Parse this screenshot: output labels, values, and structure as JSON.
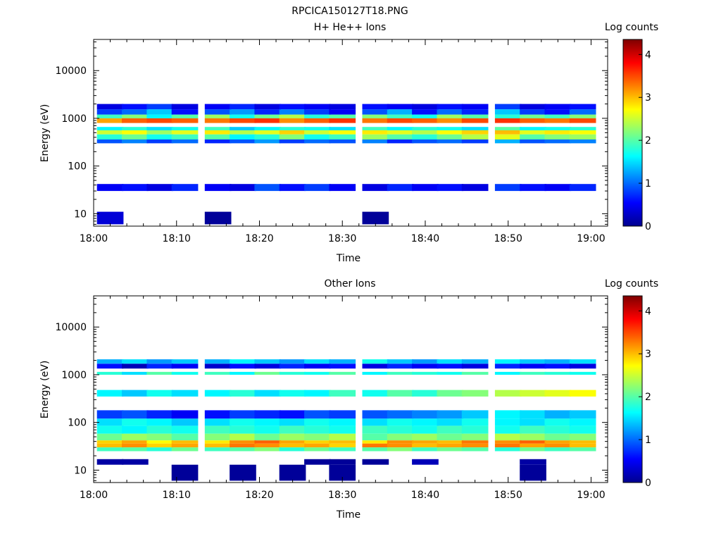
{
  "figure_title": "RPCICA150127T18.PNG",
  "colormap": [
    "#00008f",
    "#0000ff",
    "#007fff",
    "#00ffff",
    "#7fff7f",
    "#ffff00",
    "#ff7f00",
    "#ff0000",
    "#7f0000"
  ],
  "chart_data": [
    {
      "type": "heatmap",
      "title": "H+ He++ Ions",
      "xlabel": "Time",
      "ylabel": "Energy (eV)",
      "x_ticks": [
        "18:00",
        "18:10",
        "18:20",
        "18:30",
        "18:40",
        "18:50",
        "19:00"
      ],
      "y_ticks": [
        "10",
        "100",
        "1000",
        "10000"
      ],
      "y_scale": "log",
      "ylim": [
        5.5,
        45000
      ],
      "xlim": [
        "18:00",
        "19:02"
      ],
      "colorbar_label": "Log counts",
      "colorbar_ticks": [
        "0",
        "1",
        "2",
        "3",
        "4"
      ],
      "zlim": [
        0,
        4.35
      ],
      "time_columns": [
        "18:02",
        "18:05",
        "18:08",
        "18:11",
        "18:15",
        "18:18",
        "18:21",
        "18:24",
        "18:27",
        "18:30",
        "18:34",
        "18:37",
        "18:40",
        "18:43",
        "18:46",
        "18:50",
        "18:53",
        "18:56",
        "18:59"
      ],
      "bands": [
        {
          "e_low": 800,
          "e_high": 1000,
          "values": [
            3.1,
            3.4,
            3.5,
            3.4,
            3.3,
            3.5,
            3.6,
            3.2,
            3.4,
            3.6,
            3.3,
            3.5,
            3.4,
            3.2,
            3.5,
            3.6,
            3.4,
            3.3,
            3.5
          ]
        },
        {
          "e_low": 1000,
          "e_high": 1200,
          "values": [
            1.9,
            2.2,
            1.6,
            2.0,
            2.3,
            1.7,
            2.1,
            2.4,
            1.8,
            2.0,
            2.2,
            1.9,
            1.7,
            2.3,
            2.0,
            1.8,
            2.1,
            1.9,
            2.2
          ]
        },
        {
          "e_low": 1200,
          "e_high": 1550,
          "values": [
            0.8,
            1.0,
            1.4,
            0.6,
            0.9,
            1.2,
            0.7,
            1.1,
            0.8,
            0.5,
            0.9,
            1.3,
            0.6,
            1.0,
            0.7,
            1.4,
            0.8,
            0.6,
            1.0
          ]
        },
        {
          "e_low": 1550,
          "e_high": 2000,
          "values": [
            0.4,
            0.6,
            0.8,
            0.4,
            0.5,
            0.7,
            0.4,
            0.6,
            0.5,
            0.4,
            0.6,
            0.5,
            0.4,
            0.6,
            0.5,
            0.8,
            0.4,
            0.5,
            0.6
          ]
        },
        {
          "e_low": 560,
          "e_high": 660,
          "values": [
            1.6,
            1.8,
            1.5,
            1.7,
            1.9,
            1.4,
            1.6,
            1.8,
            1.7,
            1.5,
            1.9,
            1.6,
            1.8,
            1.7,
            1.5,
            2.0,
            1.6,
            1.7,
            1.8
          ]
        },
        {
          "e_low": 460,
          "e_high": 560,
          "values": [
            2.5,
            2.7,
            2.3,
            2.6,
            2.8,
            2.4,
            2.6,
            2.9,
            2.5,
            2.7,
            2.8,
            2.6,
            2.4,
            2.7,
            2.9,
            3.0,
            2.6,
            2.8,
            2.7
          ]
        },
        {
          "e_low": 360,
          "e_high": 460,
          "values": [
            1.8,
            2.1,
            1.7,
            1.9,
            2.0,
            1.6,
            1.8,
            2.2,
            1.7,
            1.9,
            2.3,
            2.0,
            1.8,
            2.1,
            2.4,
            2.6,
            2.0,
            2.2,
            2.3
          ]
        },
        {
          "e_low": 300,
          "e_high": 360,
          "values": [
            0.9,
            1.1,
            0.8,
            1.0,
            0.7,
            0.9,
            1.2,
            0.8,
            1.0,
            0.9,
            1.1,
            0.7,
            0.9,
            1.0,
            0.8,
            1.3,
            0.9,
            1.0,
            1.1
          ]
        },
        {
          "e_low": 30,
          "e_high": 42,
          "values": [
            0.5,
            0.6,
            0.4,
            0.7,
            0.5,
            0.4,
            0.9,
            0.6,
            0.8,
            0.5,
            0.4,
            0.7,
            0.5,
            0.6,
            0.4,
            0.8,
            0.6,
            0.5,
            0.7
          ]
        },
        {
          "e_low": 6,
          "e_high": 11,
          "values": [
            0.35,
            null,
            null,
            null,
            0.05,
            null,
            null,
            null,
            null,
            null,
            0.05,
            null,
            null,
            null,
            null,
            null,
            null,
            null,
            null
          ]
        }
      ]
    },
    {
      "type": "heatmap",
      "title": "Other Ions",
      "xlabel": "Time",
      "ylabel": "Energy (eV)",
      "x_ticks": [
        "18:00",
        "18:10",
        "18:20",
        "18:30",
        "18:40",
        "18:50",
        "19:00"
      ],
      "y_ticks": [
        "10",
        "100",
        "1000",
        "10000"
      ],
      "y_scale": "log",
      "ylim": [
        5.5,
        45000
      ],
      "xlim": [
        "18:00",
        "19:02"
      ],
      "colorbar_label": "Log counts",
      "colorbar_ticks": [
        "0",
        "1",
        "2",
        "3",
        "4"
      ],
      "zlim": [
        0,
        4.35
      ],
      "time_columns": [
        "18:02",
        "18:05",
        "18:08",
        "18:11",
        "18:15",
        "18:18",
        "18:21",
        "18:24",
        "18:27",
        "18:30",
        "18:34",
        "18:37",
        "18:40",
        "18:43",
        "18:46",
        "18:50",
        "18:53",
        "18:56",
        "18:59"
      ],
      "bands": [
        {
          "e_low": 1700,
          "e_high": 2100,
          "values": [
            1.3,
            1.5,
            1.2,
            1.4,
            1.3,
            1.6,
            1.4,
            1.2,
            1.5,
            1.3,
            1.7,
            1.4,
            1.2,
            1.5,
            1.3,
            1.6,
            1.4,
            1.3,
            1.5
          ]
        },
        {
          "e_low": 1350,
          "e_high": 1700,
          "values": [
            0.6,
            0.2,
            0.7,
            0.5,
            0.3,
            0.6,
            0.4,
            0.7,
            0.5,
            0.6,
            0.4,
            0.7,
            0.5,
            0.6,
            0.4,
            0.7,
            0.5,
            0.6,
            0.4
          ]
        },
        {
          "e_low": 1000,
          "e_high": 1150,
          "values": [
            1.8,
            1.5,
            2.0,
            1.7,
            1.9,
            1.6,
            2.1,
            1.8,
            1.7,
            2.0,
            1.6,
            1.9,
            1.8,
            1.7,
            2.0,
            1.6,
            1.9,
            1.8,
            1.7
          ]
        },
        {
          "e_low": 350,
          "e_high": 480,
          "values": [
            1.6,
            1.4,
            1.7,
            1.5,
            1.6,
            1.8,
            1.5,
            1.7,
            1.6,
            1.9,
            1.7,
            2.0,
            1.8,
            2.1,
            2.2,
            2.4,
            2.5,
            2.6,
            2.7
          ]
        },
        {
          "e_low": 120,
          "e_high": 180,
          "values": [
            0.8,
            0.9,
            0.7,
            0.5,
            0.6,
            0.8,
            0.7,
            0.6,
            0.9,
            0.8,
            0.9,
            1.0,
            1.1,
            1.2,
            1.4,
            1.6,
            1.5,
            1.3,
            1.4
          ]
        },
        {
          "e_low": 85,
          "e_high": 120,
          "values": [
            1.5,
            1.7,
            1.6,
            1.4,
            1.5,
            1.7,
            1.6,
            1.5,
            1.7,
            1.6,
            1.5,
            1.7,
            1.6,
            1.5,
            1.7,
            1.6,
            1.5,
            1.7,
            1.6
          ]
        },
        {
          "e_low": 58,
          "e_high": 85,
          "values": [
            1.7,
            1.6,
            1.8,
            1.7,
            1.9,
            1.8,
            1.7,
            1.9,
            1.8,
            1.7,
            1.9,
            1.8,
            1.7,
            1.9,
            1.8,
            1.7,
            1.9,
            1.8,
            1.7
          ]
        },
        {
          "e_low": 42,
          "e_high": 58,
          "values": [
            2.1,
            2.3,
            2.2,
            2.0,
            2.2,
            2.4,
            2.1,
            2.3,
            2.2,
            2.4,
            2.0,
            2.2,
            2.3,
            2.1,
            2.2,
            2.4,
            2.3,
            2.1,
            2.2
          ]
        },
        {
          "e_low": 36,
          "e_high": 42,
          "values": [
            2.9,
            3.1,
            2.7,
            3.0,
            2.8,
            3.2,
            3.4,
            3.1,
            2.9,
            3.0,
            2.8,
            3.2,
            3.1,
            3.0,
            3.3,
            3.2,
            3.4,
            3.1,
            3.0
          ]
        },
        {
          "e_low": 30,
          "e_high": 36,
          "values": [
            3.0,
            3.2,
            2.9,
            3.1,
            3.0,
            3.3,
            3.2,
            3.0,
            3.1,
            2.9,
            3.3,
            3.2,
            3.0,
            3.1,
            3.2,
            3.3,
            3.1,
            3.2,
            3.0
          ]
        },
        {
          "e_low": 25,
          "e_high": 30,
          "values": [
            1.9,
            2.0,
            1.8,
            2.1,
            1.9,
            2.0,
            2.2,
            1.8,
            2.1,
            1.9,
            2.0,
            2.2,
            1.9,
            2.1,
            2.0,
            1.8,
            2.1,
            1.9,
            2.0
          ]
        },
        {
          "e_low": 13,
          "e_high": 17,
          "values": [
            0.1,
            0.1,
            null,
            null,
            null,
            null,
            null,
            null,
            0.05,
            0.05,
            0.05,
            null,
            0.2,
            null,
            null,
            null,
            0.1,
            null,
            null
          ]
        },
        {
          "e_low": 6,
          "e_high": 13,
          "values": [
            null,
            null,
            null,
            0.05,
            null,
            0.05,
            null,
            0.05,
            null,
            0.05,
            null,
            null,
            null,
            null,
            null,
            null,
            0.05,
            null,
            null
          ]
        }
      ]
    }
  ]
}
